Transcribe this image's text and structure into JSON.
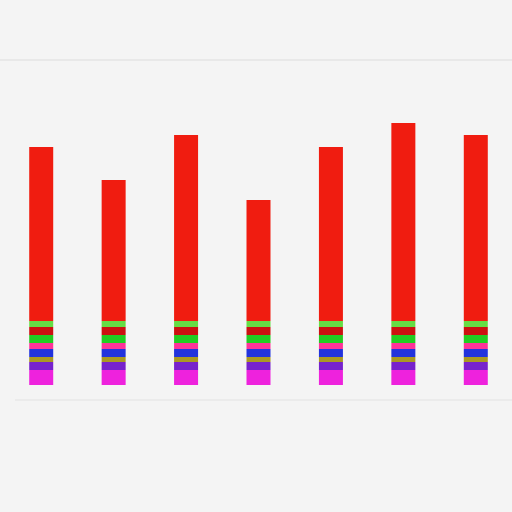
{
  "chart_data": {
    "type": "stacked_bar",
    "categories": [
      null,
      null,
      null,
      null,
      null,
      null,
      null
    ],
    "ylim": [
      0,
      280
    ],
    "series": [
      {
        "color": "#ee22dd",
        "values": [
          15,
          15,
          15,
          15,
          15,
          15,
          15
        ]
      },
      {
        "color": "#7722cc",
        "values": [
          8,
          8,
          8,
          8,
          8,
          8,
          8
        ]
      },
      {
        "color": "#aa9922",
        "values": [
          5,
          5,
          5,
          5,
          5,
          5,
          5
        ]
      },
      {
        "color": "#2233dd",
        "values": [
          8,
          8,
          8,
          8,
          8,
          8,
          8
        ]
      },
      {
        "color": "#ff3399",
        "values": [
          6,
          6,
          6,
          6,
          6,
          6,
          6
        ]
      },
      {
        "color": "#22cc22",
        "values": [
          8,
          8,
          8,
          8,
          8,
          8,
          8
        ]
      },
      {
        "color": "#cc1111",
        "values": [
          8,
          8,
          8,
          8,
          8,
          8,
          8
        ]
      },
      {
        "color": "#66dd44",
        "values": [
          6,
          6,
          6,
          6,
          6,
          6,
          6
        ]
      },
      {
        "color": "#f01c10",
        "values": [
          174,
          141,
          186,
          121,
          174,
          198,
          186
        ]
      }
    ]
  }
}
